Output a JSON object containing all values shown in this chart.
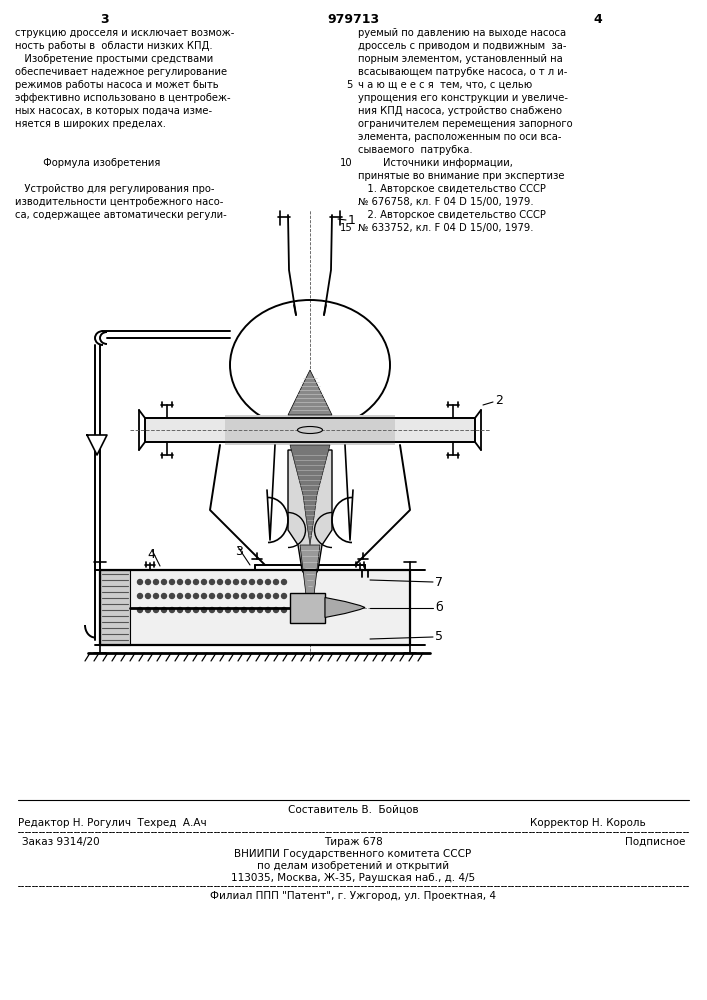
{
  "page_number_left": "3",
  "page_number_center": "979713",
  "page_number_right": "4",
  "left_col_text": [
    "струкцию дросселя и исключает возмож-",
    "ность работы в  области низких КПД.",
    "   Изобретение простыми средствами",
    "обеспечивает надежное регулирование",
    "режимов работы насоса и может быть",
    "эффективно использовано в центробеж-",
    "ных насосах, в которых подача изме-",
    "няется в широких пределах.",
    "",
    "",
    "         Формула изобретения",
    "",
    "   Устройство для регулирования про-",
    "изводительности центробежного насо-",
    "са, содержащее автоматически регули-"
  ],
  "right_col_numbers": [
    "",
    "",
    "",
    "",
    "5",
    "",
    "",
    "",
    "",
    "",
    "10",
    "",
    "",
    "",
    "",
    "15"
  ],
  "right_col_text": [
    "руемый по давлению на выходе насоса",
    "дроссель с приводом и подвижным  за-",
    "порным элементом, установленный на",
    "всасывающем патрубке насоса, о т л и-",
    "ч а ю щ е е с я  тем, что, с целью",
    "упрощения его конструкции и увеличе-",
    "ния КПД насоса, устройство снабжено",
    "ограничителем перемещения запорного",
    "элемента, расположенным по оси вса-",
    "сываемого  патрубка.",
    "        Источники информации,",
    "принятые во внимание при экспертизе",
    "   1. Авторское свидетельство СССР",
    "№ 676758, кл. F 04 D 15/00, 1979.",
    "   2. Авторское свидетельство СССР",
    "№ 633752, кл. F 04 D 15/00, 1979."
  ],
  "footer_composer": "Составитель В.  Бойцов",
  "footer_editor": "Редактор Н. Рогулич  Техред  А.Ач",
  "footer_corrector": "Корректор Н. Король",
  "footer_order": "Заказ 9314/20",
  "footer_tirazh": "Тираж 678",
  "footer_podpisnoe": "Подписное",
  "footer_vniip1": "ВНИИПИ Государственного комитета СССР",
  "footer_vniip2": "по делам изобретений и открытий",
  "footer_vniip3": "113035, Москва, Ж-35, Раушская наб., д. 4/5",
  "footer_filial": "Филиал ППП \"Патент\", г. Ужгород, ул. Проектная, 4",
  "bg_color": "#ffffff",
  "text_color": "#000000",
  "line_color": "#000000"
}
